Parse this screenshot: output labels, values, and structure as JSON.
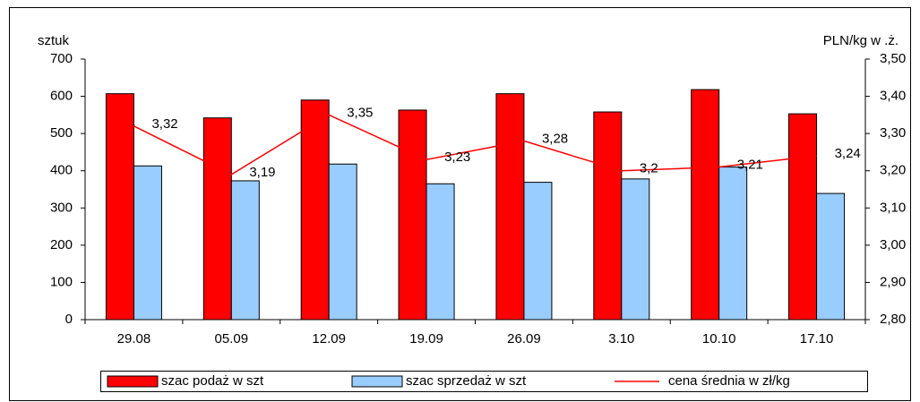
{
  "chart_data": {
    "type": "bar",
    "ylabel": "sztuk",
    "y2label": "PLN/kg w .ż.",
    "categories": [
      "29.08",
      "05.09",
      "12.09",
      "19.09",
      "26.09",
      "3.10",
      "10.10",
      "17.10"
    ],
    "series": [
      {
        "name": "szac podaż w szt",
        "type": "bar",
        "color": "#ff0000",
        "values": [
          607,
          542,
          590,
          563,
          607,
          558,
          618,
          553
        ]
      },
      {
        "name": "szac sprzedaż w szt",
        "type": "bar",
        "color": "#99ccff",
        "values": [
          413,
          373,
          418,
          365,
          369,
          378,
          410,
          339
        ]
      },
      {
        "name": "cena średnia w zł/kg",
        "type": "line",
        "axis": "y2",
        "color": "#ff0000",
        "values": [
          3.32,
          3.19,
          3.35,
          3.23,
          3.28,
          3.2,
          3.21,
          3.24
        ],
        "value_labels": [
          "3,32",
          "3,19",
          "3,35",
          "3,23",
          "3,28",
          "3,2",
          "3,21",
          "3,24"
        ]
      }
    ],
    "ylim": [
      0,
      700
    ],
    "yticks": [
      0,
      100,
      200,
      300,
      400,
      500,
      600,
      700
    ],
    "y2lim": [
      2.8,
      3.5
    ],
    "y2ticks": [
      {
        "value": 2.8,
        "label": "2,80"
      },
      {
        "value": 2.9,
        "label": "2,90"
      },
      {
        "value": 3.0,
        "label": "3,00"
      },
      {
        "value": 3.1,
        "label": "3,10"
      },
      {
        "value": 3.2,
        "label": "3,20"
      },
      {
        "value": 3.3,
        "label": "3,30"
      },
      {
        "value": 3.4,
        "label": "3,40"
      },
      {
        "value": 3.5,
        "label": "3,50"
      }
    ],
    "grid": false,
    "legend": "bottom"
  }
}
